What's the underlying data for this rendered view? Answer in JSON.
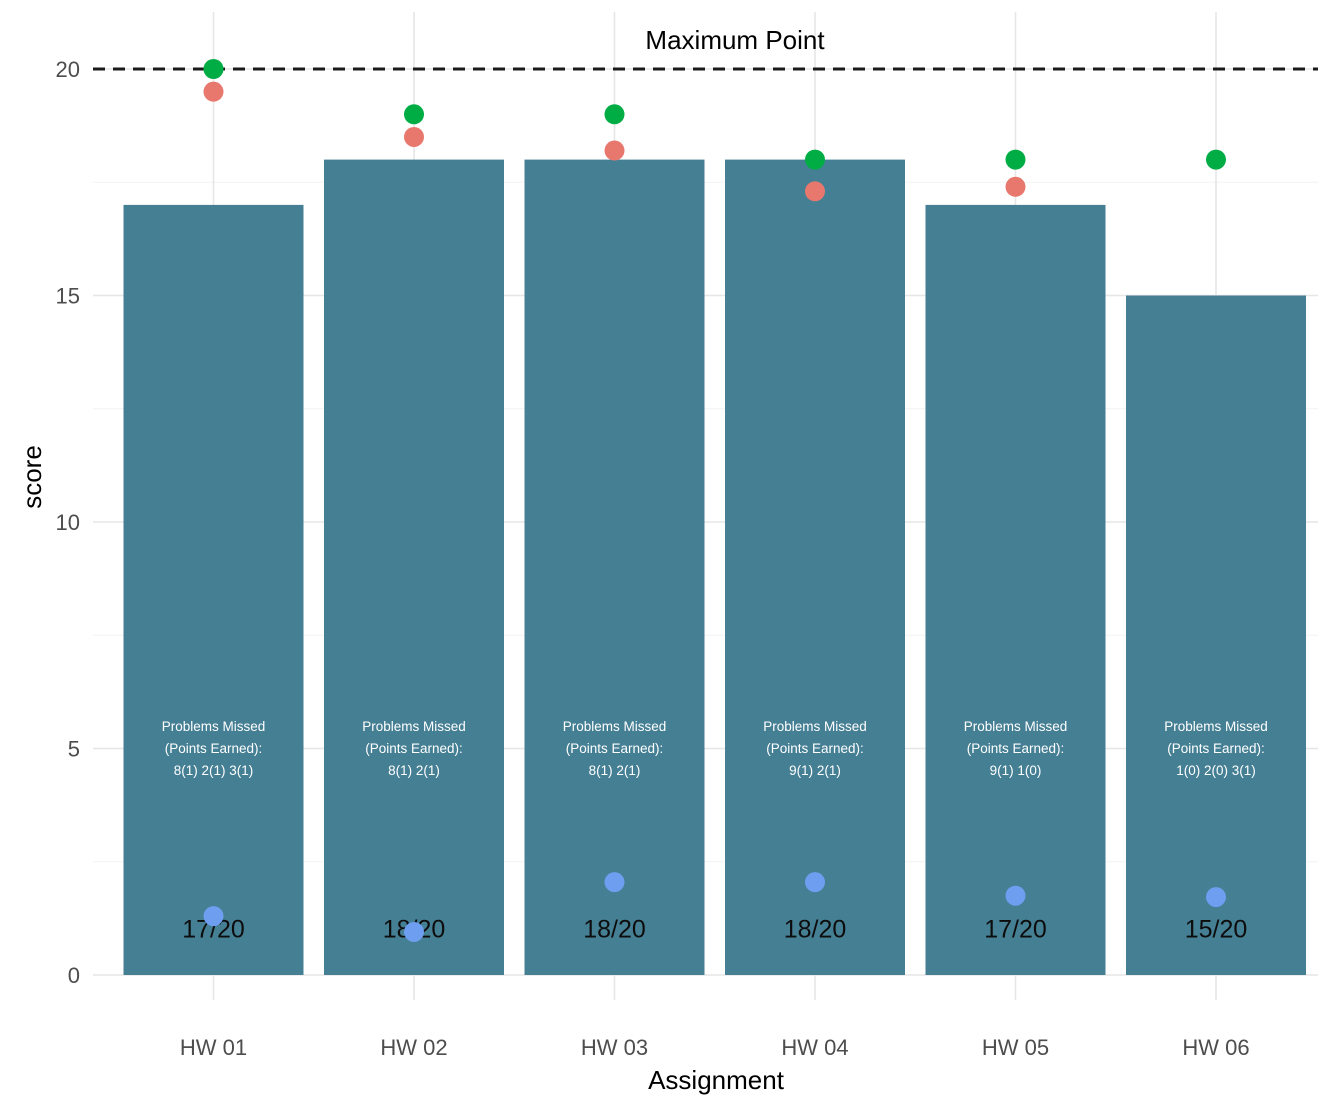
{
  "chart_data": {
    "type": "bar",
    "xlabel": "Assignment",
    "ylabel": "score",
    "ylim": [
      0,
      20
    ],
    "yticks": [
      0,
      5,
      10,
      15,
      20
    ],
    "grid": true,
    "categories": [
      "HW 01",
      "HW 02",
      "HW 03",
      "HW 04",
      "HW 05",
      "HW 06"
    ],
    "values": [
      17,
      18,
      18,
      18,
      17,
      15
    ],
    "bar_color": "#457f94",
    "bar_labels": [
      "17/20",
      "18/20",
      "18/20",
      "18/20",
      "17/20",
      "15/20"
    ],
    "notes": [
      [
        "Problems Missed",
        "(Points Earned):",
        "8(1) 2(1) 3(1)"
      ],
      [
        "Problems Missed",
        "(Points Earned):",
        "8(1) 2(1)"
      ],
      [
        "Problems Missed",
        "(Points Earned):",
        "8(1) 2(1)"
      ],
      [
        "Problems Missed",
        "(Points Earned):",
        "9(1) 2(1)"
      ],
      [
        "Problems Missed",
        "(Points Earned):",
        "9(1) 1(0)"
      ],
      [
        "Problems Missed",
        "(Points Earned):",
        "1(0) 2(0) 3(1)"
      ]
    ],
    "reference_line": {
      "y": 20,
      "label": "Maximum Point",
      "style": "dashed"
    },
    "points": [
      {
        "color": "#00ad45",
        "values": [
          20,
          19,
          19,
          18,
          18,
          18
        ]
      },
      {
        "color": "#e8786e",
        "values": [
          19.5,
          18.5,
          18.2,
          17.3,
          17.4,
          null
        ]
      },
      {
        "color": "#6e9ef0",
        "values": [
          1.3,
          0.95,
          2.05,
          2.05,
          1.75,
          1.72
        ]
      }
    ]
  }
}
